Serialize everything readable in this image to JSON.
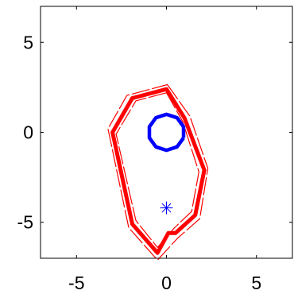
{
  "chart_data": {
    "type": "line",
    "title": "",
    "xlabel": "",
    "ylabel": "",
    "xlim": [
      -7,
      7
    ],
    "ylim": [
      -7,
      7
    ],
    "grid": false,
    "x_ticks": [
      {
        "value": -5,
        "label": "-5"
      },
      {
        "value": 0,
        "label": "0"
      },
      {
        "value": 5,
        "label": "5"
      }
    ],
    "y_ticks": [
      {
        "value": 5,
        "label": "5"
      },
      {
        "value": 0,
        "label": "0"
      },
      {
        "value": -5,
        "label": "-5"
      }
    ],
    "series": [
      {
        "kind": "outline",
        "color": "#ff0000",
        "points": [
          [
            0.0,
            2.4
          ],
          [
            1.0,
            0.8
          ],
          [
            2.1,
            -2.1
          ],
          [
            1.6,
            -4.6
          ],
          [
            0.5,
            -5.6
          ],
          [
            0.1,
            -5.6
          ],
          [
            -0.5,
            -6.7
          ],
          [
            -1.9,
            -5.1
          ],
          [
            -3.0,
            0.0
          ],
          [
            -1.9,
            1.9
          ],
          [
            0.0,
            2.4
          ]
        ]
      },
      {
        "kind": "bound",
        "color": "#ff0000",
        "points": [
          [
            0.05,
            2.65
          ],
          [
            1.3,
            0.9
          ],
          [
            2.3,
            -2.0
          ],
          [
            1.85,
            -4.8
          ],
          [
            0.6,
            -5.9
          ],
          [
            -0.5,
            -7.1
          ],
          [
            -2.1,
            -5.3
          ],
          [
            -3.25,
            0.2
          ],
          [
            -2.2,
            2.05
          ],
          [
            0.05,
            2.65
          ]
        ]
      },
      {
        "kind": "bound",
        "color": "#ff0000",
        "points": [
          [
            0.0,
            2.2
          ],
          [
            0.9,
            0.6
          ],
          [
            1.8,
            -2.2
          ],
          [
            1.4,
            -4.4
          ],
          [
            0.45,
            -5.3
          ],
          [
            -0.5,
            -6.4
          ],
          [
            -1.7,
            -4.9
          ],
          [
            -2.8,
            -0.1
          ],
          [
            -1.7,
            1.75
          ],
          [
            0.0,
            2.2
          ]
        ]
      },
      {
        "kind": "circle",
        "color": "#0000ff",
        "center": [
          0.0,
          0.0
        ],
        "radius": 1.0
      },
      {
        "kind": "marker",
        "marker": "asterisk",
        "color": "#0000ff",
        "points": [
          [
            0.0,
            -4.2
          ]
        ]
      }
    ]
  }
}
